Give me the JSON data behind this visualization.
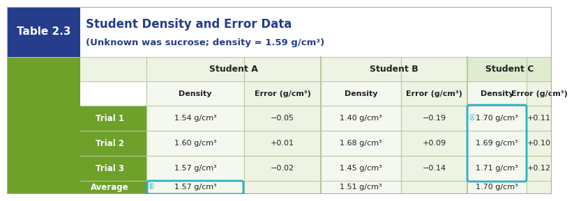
{
  "title_label": "Table 2.3",
  "title_main": "Student Density and Error Data",
  "title_sub": "(Unknown was sucrose; density = 1.59 g/cm³)",
  "title_box_color": "#263d8c",
  "title_text_color": "#263d8c",
  "row_label_bg": "#6ea02a",
  "col_headers": [
    "Density",
    "Error (g/cm³)",
    "Density",
    "Error (g/cm³)",
    "Density",
    "Error (g/cm³)"
  ],
  "student_headers": [
    "Student A",
    "Student B",
    "Student C"
  ],
  "row_labels": [
    "Trial 1",
    "Trial 2",
    "Trial 3",
    "Average"
  ],
  "rows": [
    [
      "1.54 g/cm³",
      "−0.05",
      "1.40 g/cm³",
      "−0.19",
      "1.70 g/cm³",
      "+0.11"
    ],
    [
      "1.60 g/cm³",
      "+0.01",
      "1.68 g/cm³",
      "+0.09",
      "1.69 g/cm³",
      "+0.10"
    ],
    [
      "1.57 g/cm³",
      "−0.02",
      "1.45 g/cm³",
      "−0.14",
      "1.71 g/cm³",
      "+0.12"
    ],
    [
      "1.57 g/cm³",
      "",
      "1.51 g/cm³",
      "",
      "1.70 g/cm³",
      ""
    ]
  ],
  "circle_color": "#2ab0c8",
  "fig_bg": "#ffffff",
  "text_color": "#222222",
  "grid_color": "#b8c8a0",
  "light_bg1": "#eef4e4",
  "light_bg2": "#f5f8ee",
  "student_c_bg": "#deecd0",
  "white_bg": "#ffffff"
}
